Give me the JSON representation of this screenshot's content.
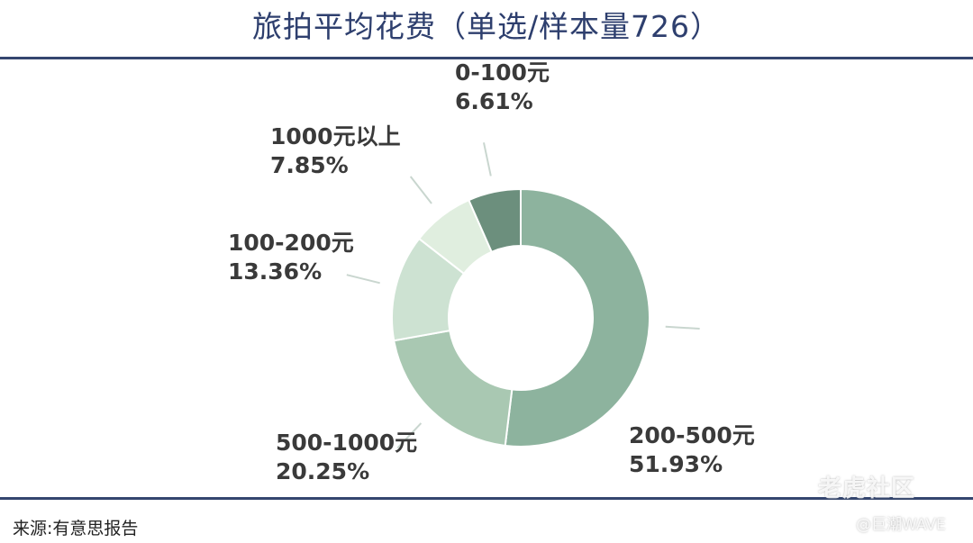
{
  "chart_data": {
    "type": "pie",
    "donut": true,
    "title": "旅拍平均花费（单选/样本量726）",
    "slices": [
      {
        "label": "200-500元",
        "value": 51.93,
        "value_text": "51.93%",
        "color": "#8db39e"
      },
      {
        "label": "500-1000元",
        "value": 20.25,
        "value_text": "20.25%",
        "color": "#a9c8b2"
      },
      {
        "label": "100-200元",
        "value": 13.36,
        "value_text": "13.36%",
        "color": "#cde2d2"
      },
      {
        "label": "1000元以上",
        "value": 7.85,
        "value_text": "7.85%",
        "color": "#e0eedf"
      },
      {
        "label": "0-100元",
        "value": 6.61,
        "value_text": "6.61%",
        "color": "#6c8f7d"
      }
    ],
    "start": "12 o'clock",
    "direction": "clockwise",
    "legend": "none"
  },
  "footer": {
    "source": "来源:有意思报告"
  },
  "watermark": {
    "brand": "老虎社区",
    "handle": "@巨潮WAVE"
  }
}
